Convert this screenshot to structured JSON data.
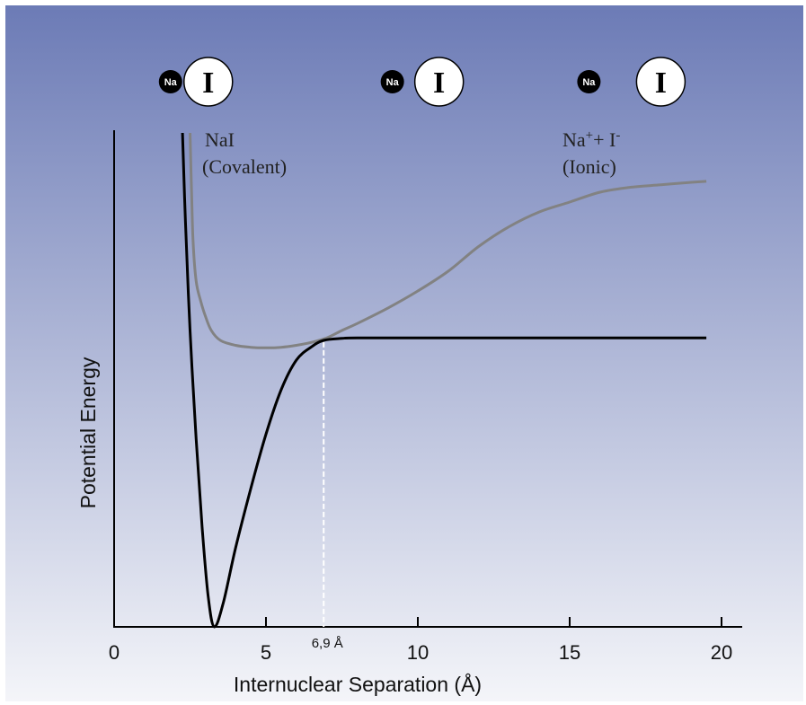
{
  "chart_data": {
    "type": "line",
    "title": "",
    "xlabel": "Internuclear Separation (Å)",
    "ylabel": "Potential Energy",
    "xlim": [
      0,
      20.8
    ],
    "ylim": [
      0,
      1
    ],
    "x_ticks": [
      0,
      5,
      10,
      15,
      20
    ],
    "grid": false,
    "series": [
      {
        "name": "",
        "label_lines": [
          "Na+ + I-",
          "(Ionic)"
        ],
        "color": "#828282",
        "x": [
          2.5,
          2.55,
          2.6,
          2.7,
          2.85,
          3.0,
          3.2,
          3.5,
          4.0,
          4.5,
          5.0,
          5.5,
          6.0,
          6.5,
          7.0,
          7.5,
          8.0,
          9.0,
          10.0,
          11.0,
          12.0,
          13.0,
          14.0,
          15.0,
          16.0,
          17.0,
          18.0,
          19.0,
          19.5
        ],
        "y": [
          1.0,
          0.88,
          0.78,
          0.7,
          0.66,
          0.63,
          0.6,
          0.58,
          0.57,
          0.566,
          0.565,
          0.566,
          0.57,
          0.576,
          0.585,
          0.6,
          0.614,
          0.645,
          0.68,
          0.72,
          0.77,
          0.81,
          0.84,
          0.86,
          0.88,
          0.89,
          0.895,
          0.9,
          0.902
        ]
      },
      {
        "name": "",
        "label_lines": [
          "NaI",
          "(Covalent)"
        ],
        "color": "#000000",
        "x": [
          2.25,
          2.35,
          2.5,
          2.7,
          2.9,
          3.1,
          3.3,
          3.6,
          4.0,
          4.5,
          5.0,
          5.5,
          6.0,
          6.5,
          6.9,
          7.5,
          8.0,
          10.0,
          15.0,
          19.5
        ],
        "y": [
          1.0,
          0.82,
          0.6,
          0.38,
          0.2,
          0.06,
          0.0,
          0.05,
          0.16,
          0.28,
          0.39,
          0.48,
          0.54,
          0.567,
          0.58,
          0.584,
          0.585,
          0.585,
          0.585,
          0.585
        ]
      }
    ],
    "annotations": [
      {
        "text": "6,9 Å",
        "x": 6.9,
        "type": "vertical-dashed-line"
      }
    ]
  },
  "atoms_top": [
    {
      "small": "Na",
      "large": "I",
      "x": 3.1,
      "spacing": "bonded"
    },
    {
      "small": "Na",
      "large": "I",
      "x": 10.7,
      "spacing": "near"
    },
    {
      "small": "Na",
      "large": "I",
      "x": 18.0,
      "spacing": "far"
    }
  ],
  "colors": {
    "bg_top": "#6c7bb6",
    "bg_bottom": "#f4f5f9",
    "covalent": "#000000",
    "ionic": "#828282",
    "dashed": "#ffffff"
  }
}
